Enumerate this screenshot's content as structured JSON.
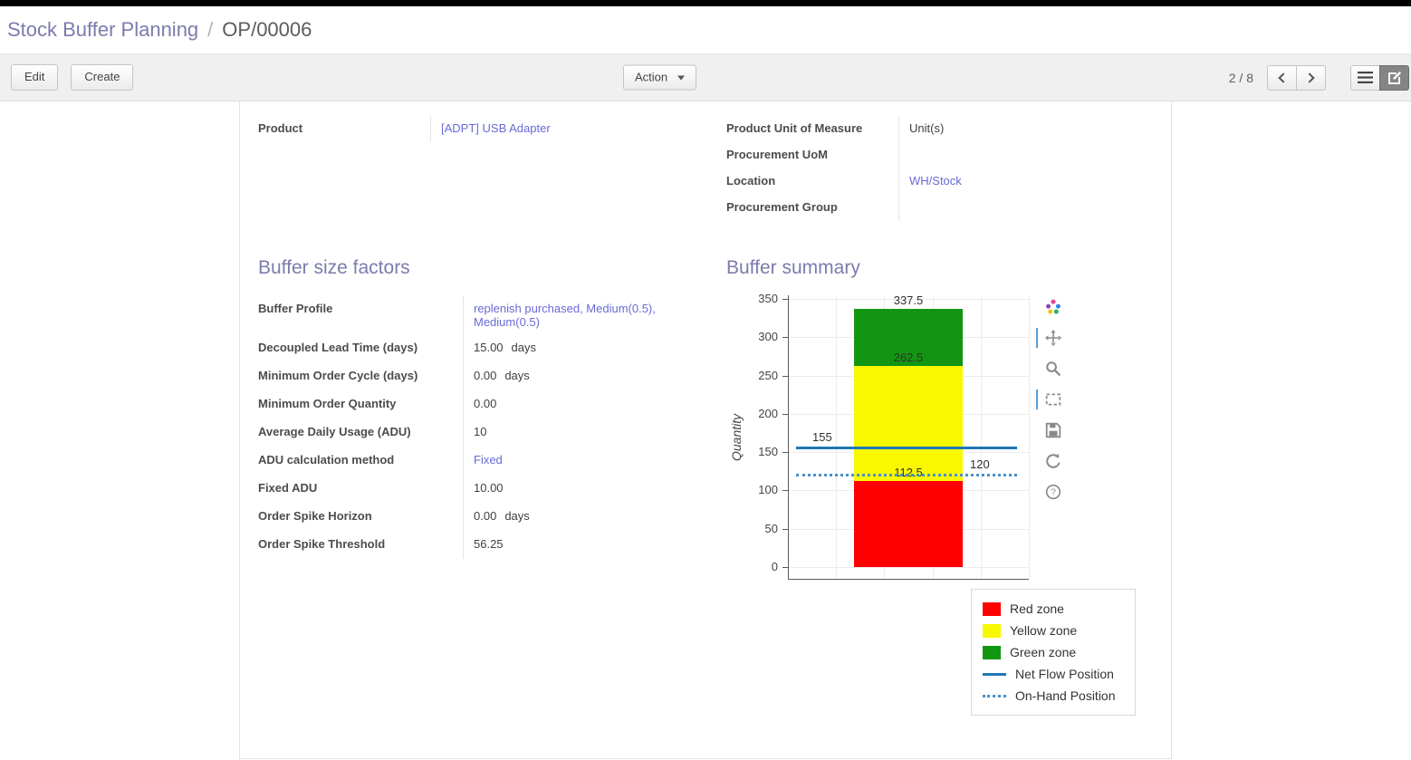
{
  "colors": {
    "topbar_bg": "#000000",
    "heading_accent": "#7c7bad",
    "link": "#6a6ad6",
    "red_zone": "#fe0000",
    "yellow_zone": "#f8f800",
    "green_zone": "#129612",
    "net_flow_line": "#1f77b4",
    "on_hand_line": "#4a90c9"
  },
  "breadcrumb": {
    "parent": "Stock Buffer Planning",
    "separator": "/",
    "current": "OP/00006"
  },
  "toolbar": {
    "edit_label": "Edit",
    "create_label": "Create",
    "action_label": "Action",
    "pager": "2 / 8",
    "views": [
      "list-view",
      "form-view"
    ],
    "active_view": "form-view"
  },
  "form": {
    "left_group": {
      "rows": [
        {
          "label": "Product",
          "value": "[ADPT] USB Adapter"
        }
      ]
    },
    "right_group": {
      "rows": [
        {
          "label": "Product Unit of Measure",
          "value": "Unit(s)"
        },
        {
          "label": "Procurement UoM",
          "value": ""
        },
        {
          "label": "Location",
          "value": "WH/Stock"
        },
        {
          "label": "Procurement Group",
          "value": ""
        }
      ]
    },
    "sections": {
      "factors_title": "Buffer size factors",
      "summary_title": "Buffer summary"
    },
    "factors": [
      {
        "label": "Buffer Profile",
        "value": "replenish purchased, Medium(0.5), Medium(0.5)"
      },
      {
        "label": "Decoupled Lead Time (days)",
        "value": "15.00",
        "suffix": "days"
      },
      {
        "label": "Minimum Order Cycle (days)",
        "value": "0.00",
        "suffix": "days"
      },
      {
        "label": "Minimum Order Quantity",
        "value": "0.00"
      },
      {
        "label": "Average Daily Usage (ADU)",
        "value": "10"
      },
      {
        "label": "ADU calculation method",
        "value": "Fixed"
      },
      {
        "label": "Fixed ADU",
        "value": "10.00"
      },
      {
        "label": "Order Spike Horizon",
        "value": "0.00",
        "suffix": "days"
      },
      {
        "label": "Order Spike Threshold",
        "value": "56.25"
      }
    ]
  },
  "chart_data": {
    "type": "bar",
    "title": "",
    "xlabel": "",
    "ylabel": "Quantity",
    "ylim": [
      0,
      355
    ],
    "yticks": [
      0,
      50,
      100,
      150,
      200,
      250,
      300,
      350
    ],
    "grid": true,
    "bar": {
      "zones": [
        {
          "name": "Red zone",
          "from": 0,
          "to": 112.5,
          "color": "#fe0000",
          "boundary_label": "112.5"
        },
        {
          "name": "Yellow zone",
          "from": 112.5,
          "to": 262.5,
          "color": "#f8f800",
          "boundary_label": "262.5"
        },
        {
          "name": "Green zone",
          "from": 262.5,
          "to": 337.5,
          "color": "#129612",
          "boundary_label": "337.5"
        }
      ]
    },
    "lines": [
      {
        "name": "Net Flow Position",
        "value": 155,
        "dash": "solid",
        "color": "#1f77b4",
        "label": "155",
        "label_pos": "left"
      },
      {
        "name": "On-Hand Position",
        "value": 120,
        "dash": "dot",
        "color": "#4a90c9",
        "label": "120",
        "label_pos": "right"
      }
    ],
    "legend_position": "bottom-right",
    "legend": [
      {
        "label": "Red zone",
        "swatch": "square",
        "color": "#fe0000"
      },
      {
        "label": "Yellow zone",
        "swatch": "square",
        "color": "#f8f800"
      },
      {
        "label": "Green zone",
        "swatch": "square",
        "color": "#129612"
      },
      {
        "label": "Net Flow Position",
        "swatch": "line",
        "color": "#1f77b4"
      },
      {
        "label": "On-Hand Position",
        "swatch": "dotted",
        "color": "#4a90c9"
      }
    ]
  },
  "modebar": [
    {
      "name": "plotly-logo",
      "marked": false
    },
    {
      "name": "pan",
      "marked": true
    },
    {
      "name": "zoom",
      "marked": false
    },
    {
      "name": "box-select",
      "marked": true
    },
    {
      "name": "save",
      "marked": false
    },
    {
      "name": "reset-axes",
      "marked": false
    },
    {
      "name": "help",
      "marked": false
    }
  ]
}
